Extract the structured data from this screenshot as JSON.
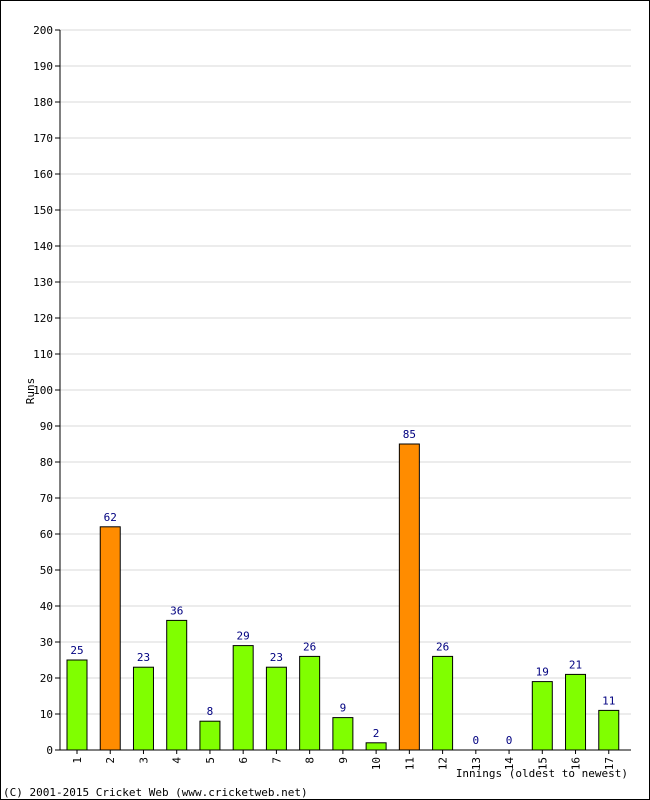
{
  "chart_data": {
    "type": "bar",
    "categories": [
      "1",
      "2",
      "3",
      "4",
      "5",
      "6",
      "7",
      "8",
      "9",
      "10",
      "11",
      "12",
      "13",
      "14",
      "15",
      "16",
      "17"
    ],
    "values": [
      25,
      62,
      23,
      36,
      8,
      29,
      23,
      26,
      9,
      2,
      85,
      26,
      0,
      0,
      19,
      21,
      11
    ],
    "highlight": [
      false,
      true,
      false,
      false,
      false,
      false,
      false,
      false,
      false,
      false,
      true,
      false,
      false,
      false,
      false,
      false,
      false
    ],
    "ylabel": "Runs",
    "xlabel": "Innings (oldest to newest)",
    "ylim": [
      0,
      200
    ],
    "ytick_step": 10,
    "grid": true,
    "colors": {
      "normal": "#80ff00",
      "highlight": "#ff8c00",
      "value_label": "#000080",
      "grid": "#d8d8d8"
    }
  },
  "footer": {
    "copyright": "(C) 2001-2015 Cricket Web (www.cricketweb.net)"
  }
}
